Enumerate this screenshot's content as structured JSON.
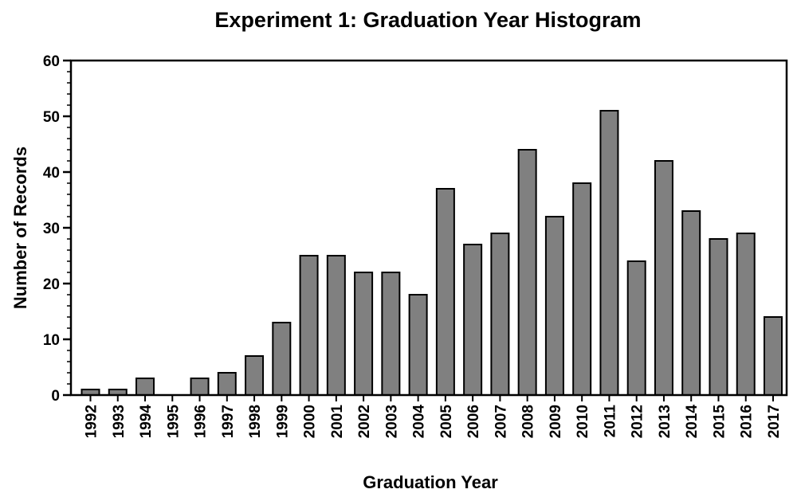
{
  "chart_data": {
    "type": "bar",
    "title": "Experiment 1:  Graduation Year Histogram",
    "xlabel": "Graduation Year",
    "ylabel": "Number of Records",
    "ylim": [
      0,
      60
    ],
    "yticks": [
      0,
      10,
      20,
      30,
      40,
      50,
      60
    ],
    "grid": false,
    "legend": "none",
    "bar_color": "#808080",
    "categories": [
      "1992",
      "1993",
      "1994",
      "1995",
      "1996",
      "1997",
      "1998",
      "1999",
      "2000",
      "2001",
      "2002",
      "2003",
      "2004",
      "2005",
      "2006",
      "2007",
      "2008",
      "2009",
      "2010",
      "2011",
      "2012",
      "2013",
      "2014",
      "2015",
      "2016",
      "2017"
    ],
    "values": [
      1,
      1,
      3,
      0,
      3,
      4,
      7,
      13,
      25,
      25,
      22,
      22,
      18,
      37,
      27,
      29,
      44,
      32,
      38,
      51,
      24,
      42,
      33,
      28,
      29,
      14
    ]
  }
}
